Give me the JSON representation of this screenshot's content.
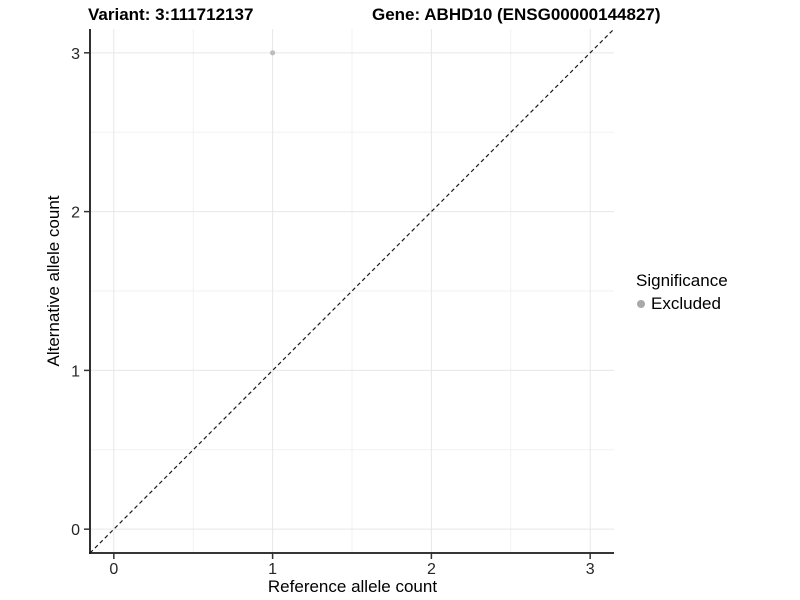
{
  "chart_data": {
    "type": "scatter",
    "title_left": "Variant: 3:111712137",
    "title_right": "Gene: ABHD10 (ENSG00000144827)",
    "xlabel": "Reference allele count",
    "ylabel": "Alternative allele count",
    "x_ticks": [
      0,
      1,
      2,
      3
    ],
    "y_ticks": [
      0,
      1,
      2,
      3
    ],
    "x_minor_ticks": [
      0.5,
      1.5,
      2.5
    ],
    "y_minor_ticks": [
      0.5,
      1.5,
      2.5
    ],
    "xlim": [
      -0.15,
      3.15
    ],
    "ylim": [
      -0.15,
      3.15
    ],
    "grid": "major and minor, light grey on white",
    "points": [
      {
        "x": 1,
        "y": 3,
        "series": "Excluded"
      }
    ],
    "reference_line": {
      "kind": "identity y=x",
      "x": [
        -0.15,
        3.15
      ],
      "y": [
        -0.15,
        3.15
      ],
      "style": "dashed"
    },
    "legend": {
      "title": "Significance",
      "position": "right",
      "items": [
        {
          "label": "Excluded",
          "color": "#a9a9a9"
        }
      ]
    },
    "colors": {
      "point": "#bdbdbd",
      "grid_major": "#e7e7e7",
      "grid_minor": "#f2f2f2",
      "axis_line": "#1a1a1a",
      "tick_mark": "#333333",
      "tick_label": "#262626",
      "reference_line": "#1a1a1a"
    }
  }
}
